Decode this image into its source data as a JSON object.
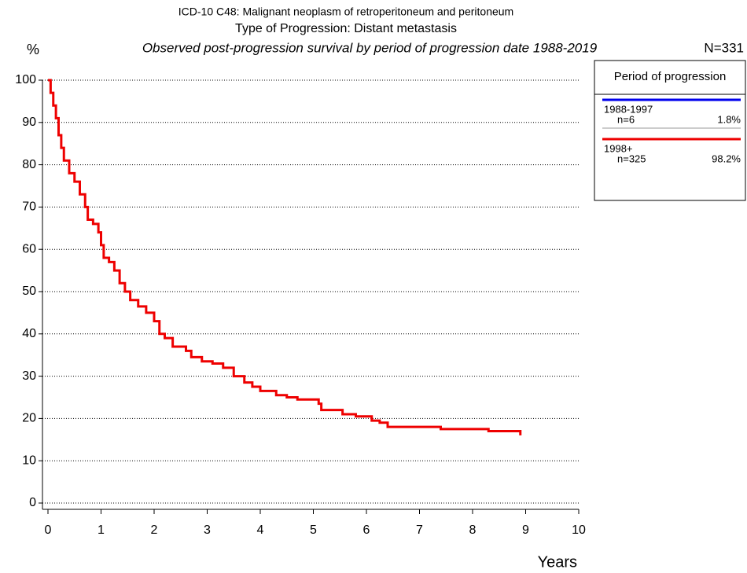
{
  "chart_data": {
    "type": "step-line",
    "title": "ICD-10 C48: Malignant neoplasm of retroperitoneum and peritoneum",
    "subtitle": "Type of Progression: Distant metastasis",
    "description": "Observed post-progression survival by period of progression date 1988-2019",
    "total": "N=331",
    "y_label": "%",
    "x_label": "Years",
    "legend_title": "Period of progression",
    "xlim": [
      0,
      10
    ],
    "xticks": [
      0,
      1,
      2,
      3,
      4,
      5,
      6,
      7,
      8,
      9,
      10
    ],
    "ylim": [
      0,
      100
    ],
    "yticks": [
      0,
      10,
      20,
      30,
      40,
      50,
      60,
      70,
      80,
      90,
      100
    ],
    "grid": true,
    "series": [
      {
        "name": "1988-1997",
        "color": "#0000ee",
        "n": "n=6",
        "share": "1.8%",
        "x": [],
        "values": []
      },
      {
        "name": "1998+",
        "color": "#ee0000",
        "n": "n=325",
        "share": "98.2%",
        "x": [
          0,
          0.05,
          0.1,
          0.15,
          0.2,
          0.25,
          0.3,
          0.4,
          0.5,
          0.6,
          0.7,
          0.75,
          0.85,
          0.95,
          1.0,
          1.05,
          1.15,
          1.25,
          1.35,
          1.45,
          1.55,
          1.7,
          1.85,
          2.0,
          2.1,
          2.2,
          2.35,
          2.6,
          2.7,
          2.9,
          3.1,
          3.3,
          3.5,
          3.7,
          3.85,
          4.0,
          4.3,
          4.5,
          4.7,
          5.1,
          5.15,
          5.55,
          5.8,
          6.1,
          6.25,
          6.4,
          7.4,
          8.3,
          8.9
        ],
        "values": [
          100,
          97,
          94,
          91,
          87,
          84,
          81,
          78,
          76,
          73,
          70,
          67,
          66,
          64,
          61,
          58,
          57,
          55,
          52,
          50,
          48,
          46.5,
          45,
          43,
          40,
          39,
          37,
          36,
          34.5,
          33.5,
          33,
          32,
          30,
          28.5,
          27.5,
          26.5,
          25.5,
          25,
          24.5,
          23.5,
          22,
          21,
          20.5,
          19.5,
          19,
          18,
          17.5,
          17,
          16
        ]
      }
    ]
  }
}
